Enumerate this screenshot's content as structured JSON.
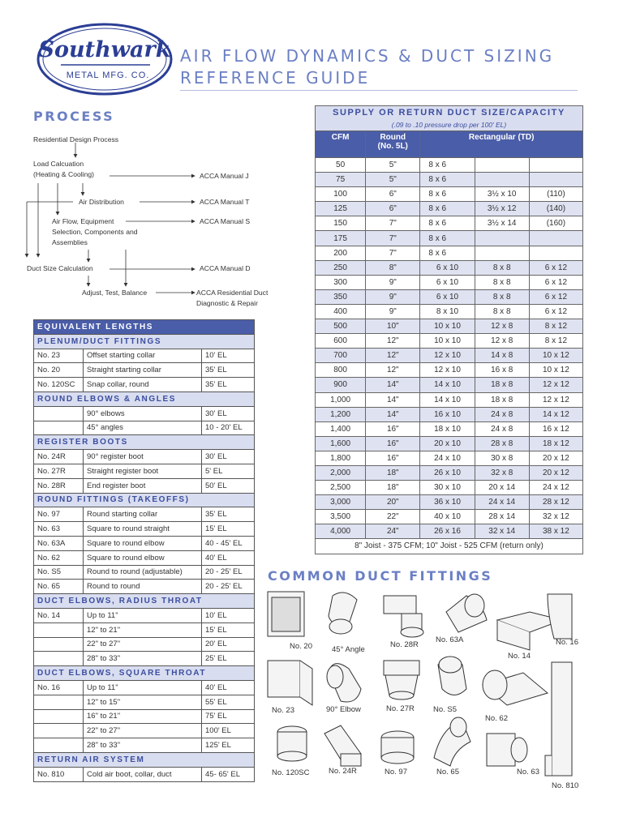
{
  "logo": {
    "text_main": "Southwark",
    "text_sub": "METAL MFG. CO.",
    "color": "#2b3e95"
  },
  "title": {
    "line1": "AIR FLOW DYNAMICS & DUCT SIZING",
    "line2": "REFERENCE GUIDE"
  },
  "process": {
    "heading": "PROCESS",
    "steps": {
      "design": "Residential Design Process",
      "load": [
        "Load Calcuation",
        "(Heating & Cooling)"
      ],
      "air_dist": "Air Distribution",
      "air_flow": [
        "Air Flow, Equipment",
        "Selection, Components and",
        "Assemblies"
      ],
      "duct_size": "Duct Size Calculation",
      "adjust": "Adjust, Test, Balance"
    },
    "refs": {
      "j": "ACCA Manual J",
      "t": "ACCA Manual T",
      "s": "ACCA Manual S",
      "d": "ACCA Manual D",
      "repair": [
        "ACCA Residential Duct",
        "Diagnostic & Repair"
      ]
    }
  },
  "equivalent_lengths": {
    "title": "EQUIVALENT LENGTHS",
    "sections": [
      {
        "name": "PLENUM/DUCT FITTINGS",
        "rows": [
          [
            "No. 23",
            "Offset starting collar",
            "10' EL"
          ],
          [
            "No. 20",
            "Straight starting collar",
            "35' EL"
          ],
          [
            "No. 120SC",
            "Snap collar, round",
            "35' EL"
          ]
        ]
      },
      {
        "name": "ROUND ELBOWS & ANGLES",
        "rows": [
          [
            "",
            "90° elbows",
            "30' EL"
          ],
          [
            "",
            "45° angles",
            "10 - 20' EL"
          ]
        ]
      },
      {
        "name": "REGISTER BOOTS",
        "rows": [
          [
            "No. 24R",
            "90° register boot",
            "30' EL"
          ],
          [
            "No. 27R",
            "Straight register boot",
            "5' EL"
          ],
          [
            "No. 28R",
            "End register boot",
            "50' EL"
          ]
        ]
      },
      {
        "name": "ROUND FITTINGS (TAKEOFFS)",
        "rows": [
          [
            "No. 97",
            "Round starting collar",
            "35' EL"
          ],
          [
            "No. 63",
            "Square to round straight",
            "15' EL"
          ],
          [
            "No. 63A",
            "Square to round elbow",
            "40 - 45' EL"
          ],
          [
            "No. 62",
            "Square to round elbow",
            "40' EL"
          ],
          [
            "No. S5",
            "Round to round (adjustable)",
            "20 - 25' EL"
          ],
          [
            "No. 65",
            "Round to round",
            "20 - 25' EL"
          ]
        ]
      },
      {
        "name": "DUCT ELBOWS, RADIUS THROAT",
        "rows": [
          [
            "No. 14",
            "Up to 11\"",
            "10' EL"
          ],
          [
            "",
            "12\" to 21\"",
            "15' EL"
          ],
          [
            "",
            "22\" to 27\"",
            "20' EL"
          ],
          [
            "",
            "28\" to 33\"",
            "25' EL"
          ]
        ]
      },
      {
        "name": "DUCT ELBOWS, SQUARE THROAT",
        "rows": [
          [
            "No. 16",
            "Up to 11\"",
            "40' EL"
          ],
          [
            "",
            "12\" to 15\"",
            "55' EL"
          ],
          [
            "",
            "16\" to 21\"",
            "75' EL"
          ],
          [
            "",
            "22\" to 27\"",
            "100' EL"
          ],
          [
            "",
            "28\" to 33\"",
            "125' EL"
          ]
        ]
      },
      {
        "name": "RETURN AIR SYSTEM",
        "rows": [
          [
            "No. 810",
            "Cold air boot, collar, duct",
            "45- 65' EL"
          ]
        ]
      }
    ]
  },
  "supply_table": {
    "title": "SUPPLY OR RETURN DUCT SIZE/CAPACITY",
    "subtitle": "(.09 to .10 pressure drop per 100' EL)",
    "headers": {
      "cfm": "CFM",
      "round": "Round",
      "round_sub": "(No. 5L)",
      "rect": "Rectangular (TD)"
    },
    "rows": [
      [
        "50",
        "5\"",
        "8 x 6",
        "",
        ""
      ],
      [
        "75",
        "5\"",
        "8 x 6",
        "",
        ""
      ],
      [
        "100",
        "6\"",
        "8 x 6",
        "3½ x 10",
        "(110)"
      ],
      [
        "125",
        "6\"",
        "8 x 6",
        "3½ x 12",
        "(140)"
      ],
      [
        "150",
        "7\"",
        "8 x 6",
        "3½ x 14",
        "(160)"
      ],
      [
        "175",
        "7\"",
        "8 x 6",
        "",
        ""
      ],
      [
        "200",
        "7\"",
        "8 x 6",
        "",
        ""
      ],
      [
        "250",
        "8\"",
        "6 x 10",
        "8 x 8",
        "6 x 12"
      ],
      [
        "300",
        "9\"",
        "6 x 10",
        "8 x 8",
        "6 x 12"
      ],
      [
        "350",
        "9\"",
        "6 x 10",
        "8 x 8",
        "6 x 12"
      ],
      [
        "400",
        "9\"",
        "8 x 10",
        "8 x 8",
        "6 x 12"
      ],
      [
        "500",
        "10\"",
        "10 x 10",
        "12 x 8",
        "8 x 12"
      ],
      [
        "600",
        "12\"",
        "10 x 10",
        "12 x 8",
        "8 x 12"
      ],
      [
        "700",
        "12\"",
        "12 x 10",
        "14 x 8",
        "10 x 12"
      ],
      [
        "800",
        "12\"",
        "12 x 10",
        "16 x 8",
        "10 x 12"
      ],
      [
        "900",
        "14\"",
        "14 x 10",
        "18 x 8",
        "12 x 12"
      ],
      [
        "1,000",
        "14\"",
        "14 x 10",
        "18 x 8",
        "12 x 12"
      ],
      [
        "1,200",
        "14\"",
        "16 x 10",
        "24 x 8",
        "14 x 12"
      ],
      [
        "1,400",
        "16\"",
        "18 x 10",
        "24 x 8",
        "16 x 12"
      ],
      [
        "1,600",
        "16\"",
        "20 x 10",
        "28 x 8",
        "18 x 12"
      ],
      [
        "1,800",
        "16\"",
        "24 x 10",
        "30 x 8",
        "20 x 12"
      ],
      [
        "2,000",
        "18\"",
        "26 x 10",
        "32 x 8",
        "20 x 12"
      ],
      [
        "2,500",
        "18\"",
        "30 x 10",
        "20 x 14",
        "24 x 12"
      ],
      [
        "3,000",
        "20\"",
        "36 x 10",
        "24 x 14",
        "28 x 12"
      ],
      [
        "3,500",
        "22\"",
        "40 x 10",
        "28 x 14",
        "32 x 12"
      ],
      [
        "4,000",
        "24\"",
        "26 x 16",
        "32 x 14",
        "38 x 12"
      ]
    ],
    "footer": "8\" Joist - 375 CFM; 10\" Joist - 525 CFM (return only)"
  },
  "fittings": {
    "heading": "COMMON DUCT FITTINGS",
    "labels": [
      "No. 20",
      "45° Angle",
      "No. 28R",
      "No. 63A",
      "No. 14",
      "No. 16",
      "No. 23",
      "90° Elbow",
      "No. 27R",
      "No. S5",
      "No. 62",
      "No. 120SC",
      "No. 24R",
      "No. 97",
      "No. 65",
      "No. 63",
      "No. 810"
    ]
  },
  "colors": {
    "header_blue": "#4a5da8",
    "light_row": "#dfe2f1",
    "title_blue": "#6b7fc4"
  }
}
